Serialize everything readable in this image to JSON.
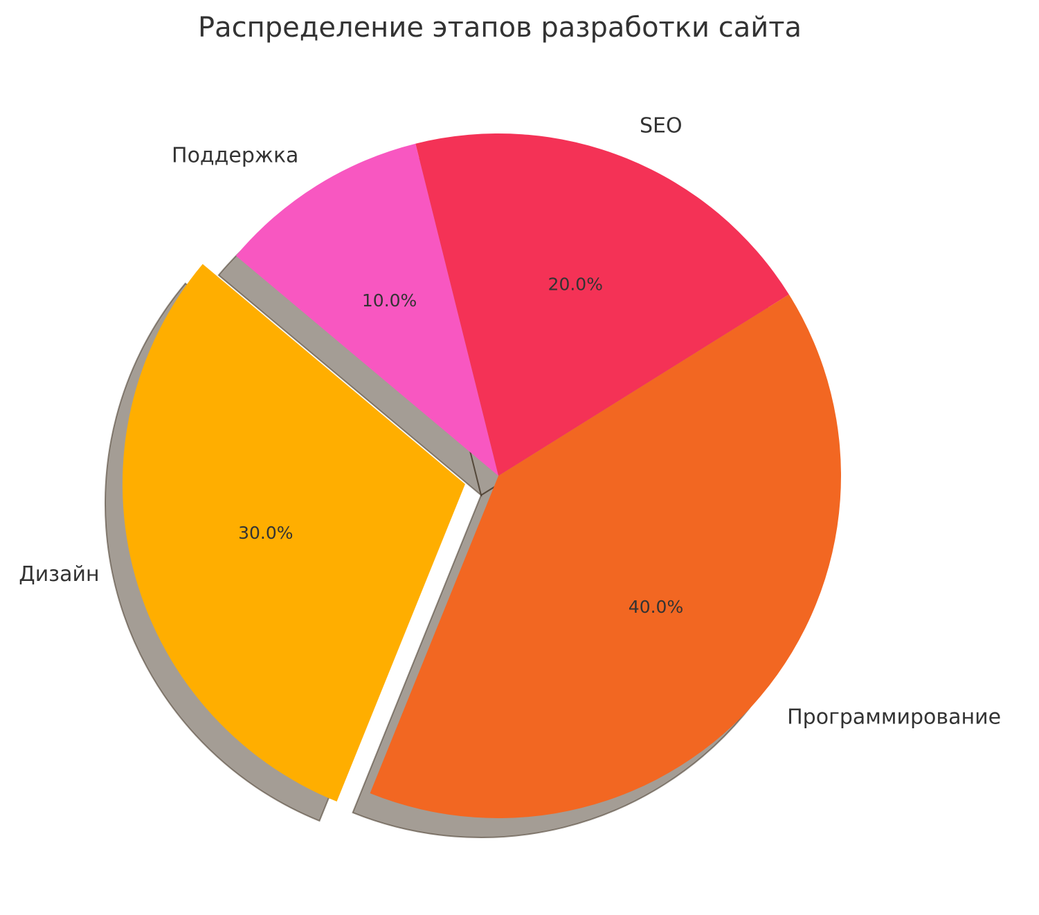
{
  "chart_data": {
    "type": "pie",
    "title": "Распределение этапов разработки сайта",
    "categories": [
      "Дизайн",
      "Программирование",
      "SEO",
      "Поддержка"
    ],
    "values": [
      30,
      40,
      20,
      10
    ],
    "value_labels": [
      "30.0%",
      "40.0%",
      "20.0%",
      "10.0%"
    ],
    "colors": [
      "#ffae00",
      "#f26722",
      "#f43256",
      "#f857c1"
    ],
    "explode": [
      0.1,
      0,
      0,
      0
    ],
    "startangle": 140,
    "shadow": true
  }
}
